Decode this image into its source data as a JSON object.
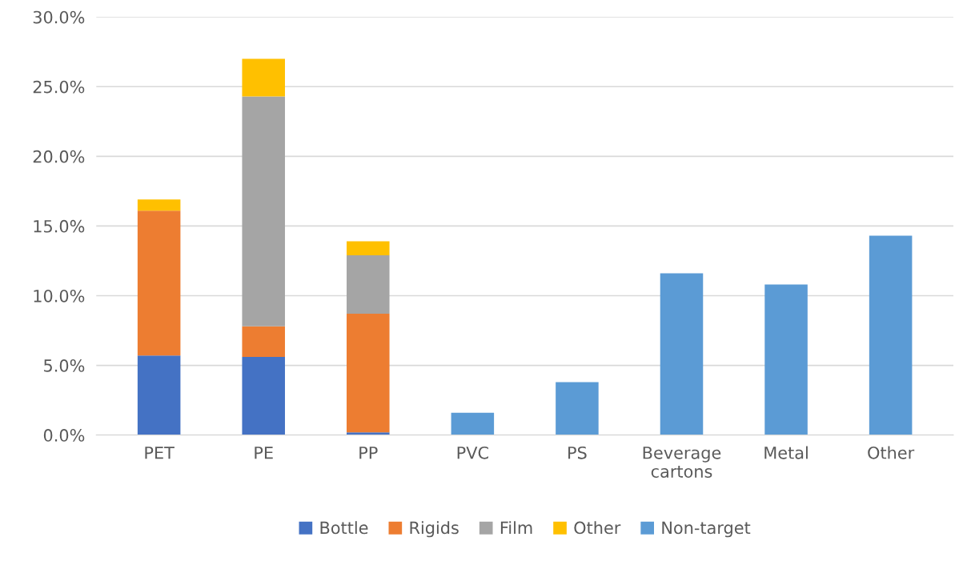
{
  "chart_data": {
    "type": "bar",
    "stacked": true,
    "categories": [
      "PET",
      "PE",
      "PP",
      "PVC",
      "PS",
      "Beverage\ncartons",
      "Metal",
      "Other"
    ],
    "series": [
      {
        "name": "Bottle",
        "color": "#4472c4",
        "values": [
          5.7,
          5.6,
          0.2,
          null,
          null,
          null,
          null,
          null
        ]
      },
      {
        "name": "Rigids",
        "color": "#ed7d31",
        "values": [
          10.4,
          2.2,
          8.5,
          null,
          null,
          null,
          null,
          null
        ]
      },
      {
        "name": "Film",
        "color": "#a5a5a5",
        "values": [
          0,
          16.5,
          4.2,
          null,
          null,
          null,
          null,
          null
        ]
      },
      {
        "name": "Other",
        "color": "#ffc000",
        "values": [
          0.8,
          2.7,
          1.0,
          null,
          null,
          null,
          null,
          null
        ]
      },
      {
        "name": "Non-target",
        "color": "#5b9bd5",
        "values": [
          null,
          null,
          null,
          1.6,
          3.8,
          11.6,
          10.8,
          14.3
        ]
      }
    ],
    "ylim": [
      0,
      30
    ],
    "yticks": [
      {
        "value": 0,
        "label": "0.0%"
      },
      {
        "value": 5,
        "label": "5.0%"
      },
      {
        "value": 10,
        "label": "10.0%"
      },
      {
        "value": 15,
        "label": "15.0%"
      },
      {
        "value": 20,
        "label": "20.0%"
      },
      {
        "value": 25,
        "label": "25.0%"
      },
      {
        "value": 30,
        "label": "30.0%"
      }
    ],
    "grid": "y",
    "legend": "bottom"
  }
}
